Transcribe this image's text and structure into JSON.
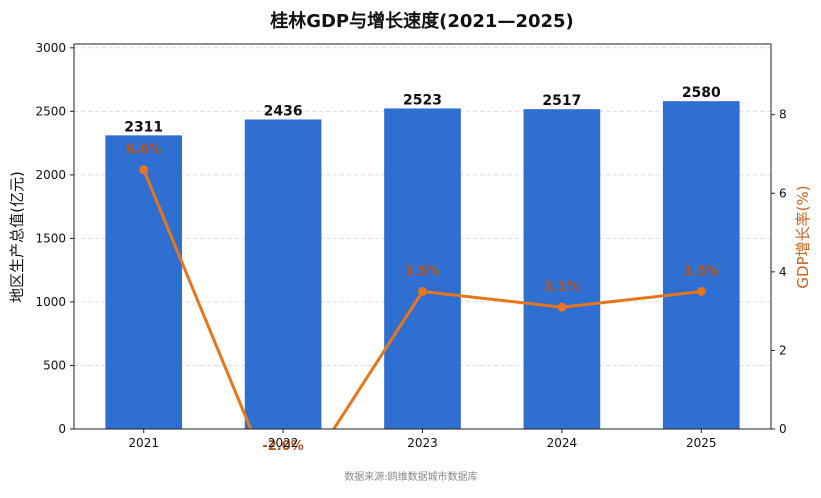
{
  "chart_data": {
    "type": "bar",
    "title": "桂林GDP与增长速度(2021—2025)",
    "categories": [
      "2021",
      "2022",
      "2023",
      "2024",
      "2025"
    ],
    "series": [
      {
        "name": "",
        "type": "bar",
        "axis": "left",
        "values": [
          2311,
          2436,
          2523,
          2517,
          2580
        ],
        "labels": [
          "2311",
          "2436",
          "2523",
          "2517",
          "2580"
        ]
      },
      {
        "name": "",
        "type": "line",
        "axis": "right",
        "values": [
          6.6,
          -2.0,
          3.5,
          3.1,
          3.5
        ],
        "labels": [
          "6.6%",
          "-2.0%",
          "3.5%",
          "3.1%",
          "3.5%"
        ]
      }
    ],
    "ylabel": "地区生产总值(亿元)",
    "y2label": "GDP增长率(%)",
    "ylim": [
      0,
      3030
    ],
    "y2lim": [
      0,
      9.8
    ],
    "yticks": [
      0,
      500,
      1000,
      1500,
      2000,
      2500,
      3000
    ],
    "y2ticks": [
      0,
      2,
      4,
      6,
      8
    ],
    "grid": true,
    "colors": {
      "bar": "#2f6fd1",
      "line": "#e5761c",
      "line_label": "#b5541a",
      "y2label": "#c8621b",
      "grid": "#dddddd"
    }
  },
  "footer": {
    "source": "数据来源:鸥维数据城市数据库"
  }
}
